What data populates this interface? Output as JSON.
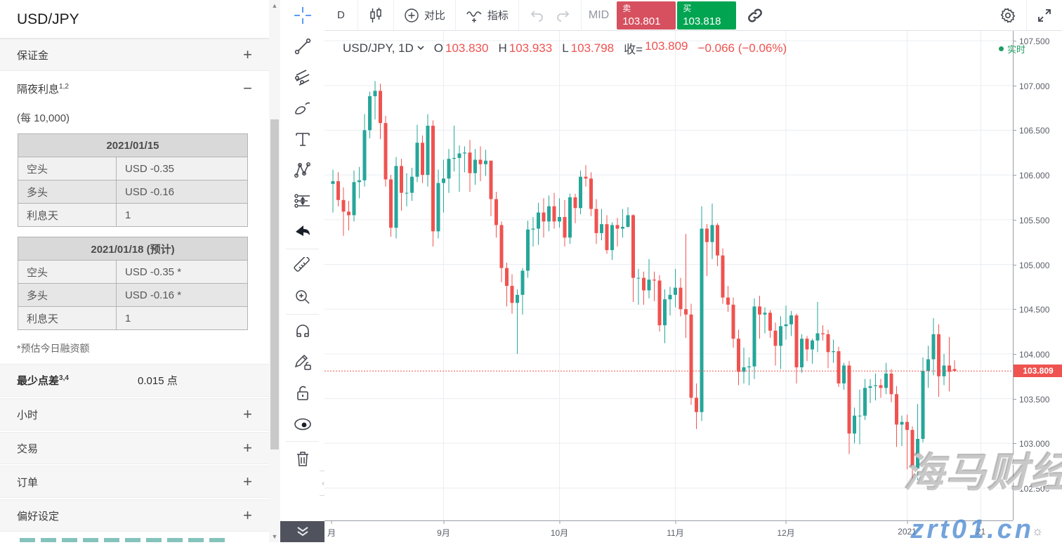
{
  "sidebar": {
    "title": "USD/JPY",
    "sections_top": [
      {
        "label": "保证金"
      }
    ],
    "overnight": {
      "label": "隔夜利息",
      "sup": "1,2",
      "subtitle": "(每 10,000)",
      "tables": [
        {
          "header": "2021/01/15",
          "rows": [
            [
              "空头",
              "USD -0.35"
            ],
            [
              "多头",
              "USD -0.16"
            ],
            [
              "利息天",
              "1"
            ]
          ]
        },
        {
          "header": "2021/01/18 (预计)",
          "rows": [
            [
              "空头",
              "USD -0.35 *"
            ],
            [
              "多头",
              "USD -0.16 *"
            ],
            [
              "利息天",
              "1"
            ]
          ]
        }
      ],
      "footnote": "*预估今日融资额"
    },
    "min_spread": {
      "label": "最少点差",
      "sup": "3,4",
      "value": "0.015 点"
    },
    "sections_bottom": [
      {
        "label": "小时"
      },
      {
        "label": "交易"
      },
      {
        "label": "订单"
      },
      {
        "label": "偏好设定"
      }
    ]
  },
  "top_toolbar": {
    "interval": "D",
    "compare_label": "对比",
    "indicators_label": "指标",
    "mid_label": "MID",
    "sell": {
      "label": "卖",
      "price": "103.801"
    },
    "buy": {
      "label": "买",
      "price": "103.818"
    }
  },
  "legend": {
    "symbol": "USD/JPY, 1D",
    "o_label": "O",
    "o": "103.830",
    "h_label": "H",
    "h": "103.933",
    "l_label": "L",
    "l": "103.798",
    "c_label": "收=",
    "c": "103.809",
    "change": "−0.066 (−0.06%)"
  },
  "realtime_label": "实时",
  "watermark": {
    "line1": "海马财经",
    "line2": "zrt01.cn"
  },
  "chart_data": {
    "type": "candlestick",
    "symbol": "USD/JPY",
    "interval": "1D",
    "title": "USD/JPY, 1D",
    "ohlc_current": {
      "open": 103.83,
      "high": 103.933,
      "low": 103.798,
      "close": 103.809,
      "change": -0.066,
      "change_pct": "-0.06%"
    },
    "current_price": 103.809,
    "ylim": [
      102.25,
      107.61
    ],
    "y_ticks": [
      107.5,
      107.0,
      106.5,
      106.0,
      105.5,
      105.0,
      104.5,
      104.0,
      103.5,
      103.0,
      102.5
    ],
    "x_ticks": [
      {
        "label": "月",
        "x": 10,
        "grid": false
      },
      {
        "label": "9月",
        "x": 169.5,
        "grid": true
      },
      {
        "label": "10月",
        "x": 334.5,
        "grid": true
      },
      {
        "label": "11月",
        "x": 499.5,
        "grid": true
      },
      {
        "label": "12月",
        "x": 657,
        "grid": true
      },
      {
        "label": "2021",
        "x": 829.5,
        "grid": true
      },
      {
        "label": "21",
        "x": 934.5,
        "grid": true
      }
    ],
    "colors": {
      "up": "#26a69a",
      "down": "#ef5350",
      "grid": "#eaedf0",
      "price_line": "#ef5350"
    },
    "candles": [
      [
        105.9,
        106.06,
        105.58,
        105.93
      ],
      [
        105.93,
        106.03,
        105.65,
        105.72
      ],
      [
        105.72,
        105.86,
        105.32,
        105.59
      ],
      [
        105.59,
        105.71,
        105.38,
        105.55
      ],
      [
        105.55,
        106.05,
        105.48,
        105.92
      ],
      [
        105.92,
        106.09,
        105.74,
        105.94
      ],
      [
        105.94,
        106.68,
        105.87,
        106.5
      ],
      [
        106.5,
        106.93,
        106.41,
        106.88
      ],
      [
        106.88,
        107.05,
        106.62,
        106.94
      ],
      [
        106.94,
        107.02,
        106.4,
        106.58
      ],
      [
        106.58,
        106.66,
        105.87,
        105.95
      ],
      [
        105.95,
        106.0,
        105.31,
        105.41
      ],
      [
        105.41,
        106.2,
        105.29,
        106.1
      ],
      [
        106.1,
        106.18,
        105.6,
        105.8
      ],
      [
        105.8,
        106.02,
        105.65,
        105.8
      ],
      [
        105.8,
        106.08,
        105.71,
        105.98
      ],
      [
        105.98,
        106.56,
        105.92,
        106.36
      ],
      [
        106.36,
        106.44,
        105.91,
        106.0
      ],
      [
        106.0,
        106.68,
        105.87,
        106.55
      ],
      [
        106.55,
        106.61,
        105.2,
        105.37
      ],
      [
        105.37,
        106.06,
        105.29,
        105.91
      ],
      [
        105.91,
        106.17,
        105.58,
        105.96
      ],
      [
        105.96,
        106.29,
        105.8,
        106.18
      ],
      [
        106.18,
        106.55,
        106.04,
        106.19
      ],
      [
        106.19,
        106.33,
        105.81,
        106.24
      ],
      [
        106.24,
        106.32,
        106.03,
        106.25
      ],
      [
        106.25,
        106.39,
        105.81,
        106.02
      ],
      [
        106.02,
        106.29,
        105.89,
        106.17
      ],
      [
        106.17,
        106.32,
        105.93,
        106.12
      ],
      [
        106.12,
        106.28,
        105.99,
        106.16
      ],
      [
        106.16,
        106.16,
        105.54,
        105.73
      ],
      [
        105.73,
        105.81,
        105.3,
        105.44
      ],
      [
        105.44,
        105.48,
        104.8,
        104.96
      ],
      [
        104.96,
        105.02,
        104.53,
        104.76
      ],
      [
        104.76,
        104.89,
        104.45,
        104.57
      ],
      [
        104.57,
        104.72,
        104.0,
        104.66
      ],
      [
        104.66,
        104.96,
        104.44,
        104.93
      ],
      [
        104.93,
        105.49,
        104.85,
        105.39
      ],
      [
        105.39,
        105.53,
        105.2,
        105.4
      ],
      [
        105.4,
        105.69,
        105.22,
        105.58
      ],
      [
        105.58,
        105.74,
        105.3,
        105.48
      ],
      [
        105.48,
        105.77,
        105.37,
        105.65
      ],
      [
        105.65,
        105.8,
        105.4,
        105.48
      ],
      [
        105.48,
        105.74,
        105.41,
        105.53
      ],
      [
        105.53,
        105.72,
        105.2,
        105.3
      ],
      [
        105.3,
        105.79,
        105.23,
        105.75
      ],
      [
        105.75,
        105.79,
        105.46,
        105.63
      ],
      [
        105.63,
        106.05,
        105.56,
        105.98
      ],
      [
        105.98,
        106.11,
        105.87,
        105.96
      ],
      [
        105.96,
        106.03,
        105.54,
        105.62
      ],
      [
        105.62,
        105.73,
        105.23,
        105.35
      ],
      [
        105.35,
        105.62,
        105.27,
        105.45
      ],
      [
        105.45,
        105.55,
        105.12,
        105.16
      ],
      [
        105.16,
        105.47,
        105.05,
        105.44
      ],
      [
        105.44,
        105.52,
        105.2,
        105.4
      ],
      [
        105.4,
        105.62,
        105.3,
        105.42
      ],
      [
        105.42,
        105.64,
        105.41,
        105.55
      ],
      [
        105.55,
        105.56,
        104.58,
        104.85
      ],
      [
        104.85,
        104.95,
        104.55,
        104.85
      ],
      [
        104.85,
        104.92,
        104.55,
        104.71
      ],
      [
        104.71,
        105.06,
        104.62,
        104.83
      ],
      [
        104.83,
        104.92,
        104.59,
        104.82
      ],
      [
        104.82,
        104.88,
        104.25,
        104.32
      ],
      [
        104.32,
        104.72,
        104.12,
        104.61
      ],
      [
        104.61,
        104.75,
        104.43,
        104.66
      ],
      [
        104.66,
        104.95,
        104.52,
        104.74
      ],
      [
        104.74,
        104.85,
        104.42,
        104.5
      ],
      [
        104.5,
        105.34,
        104.18,
        104.44
      ],
      [
        104.44,
        104.56,
        103.43,
        103.51
      ],
      [
        103.51,
        103.67,
        103.16,
        103.35
      ],
      [
        103.35,
        105.65,
        103.25,
        105.4
      ],
      [
        105.4,
        105.45,
        104.87,
        105.25
      ],
      [
        105.25,
        105.68,
        105.06,
        105.44
      ],
      [
        105.44,
        105.46,
        104.98,
        105.1
      ],
      [
        105.1,
        105.18,
        104.56,
        104.63
      ],
      [
        104.63,
        104.76,
        104.47,
        104.55
      ],
      [
        104.55,
        104.63,
        104.07,
        104.17
      ],
      [
        104.17,
        104.27,
        103.65,
        103.8
      ],
      [
        103.8,
        104.07,
        103.67,
        103.85
      ],
      [
        103.85,
        103.96,
        103.65,
        103.86
      ],
      [
        103.86,
        104.62,
        103.72,
        104.53
      ],
      [
        104.53,
        104.65,
        104.17,
        104.44
      ],
      [
        104.44,
        104.52,
        104.23,
        104.46
      ],
      [
        104.46,
        104.49,
        104.18,
        104.26
      ],
      [
        104.26,
        104.35,
        103.87,
        104.09
      ],
      [
        104.09,
        104.42,
        103.83,
        104.31
      ],
      [
        104.31,
        104.54,
        104.16,
        104.33
      ],
      [
        104.33,
        104.48,
        104.2,
        104.43
      ],
      [
        104.43,
        104.45,
        103.67,
        103.85
      ],
      [
        103.85,
        104.22,
        103.79,
        104.17
      ],
      [
        104.17,
        104.2,
        103.92,
        104.05
      ],
      [
        104.05,
        104.17,
        103.89,
        104.15
      ],
      [
        104.15,
        104.58,
        104.02,
        104.23
      ],
      [
        104.23,
        104.32,
        104.15,
        104.22
      ],
      [
        104.22,
        104.27,
        103.84,
        104.02
      ],
      [
        104.02,
        104.16,
        103.9,
        104.03
      ],
      [
        104.03,
        104.08,
        103.63,
        103.67
      ],
      [
        103.67,
        103.9,
        103.6,
        103.87
      ],
      [
        103.87,
        103.92,
        102.88,
        103.11
      ],
      [
        103.11,
        103.4,
        103.0,
        103.31
      ],
      [
        103.31,
        103.6,
        102.99,
        103.31
      ],
      [
        103.31,
        103.72,
        103.26,
        103.62
      ],
      [
        103.62,
        103.72,
        103.45,
        103.64
      ],
      [
        103.64,
        103.78,
        103.48,
        103.65
      ],
      [
        103.65,
        103.72,
        103.51,
        103.62
      ],
      [
        103.62,
        103.9,
        103.55,
        103.78
      ],
      [
        103.78,
        103.83,
        103.46,
        103.55
      ],
      [
        103.55,
        103.64,
        102.96,
        103.21
      ],
      [
        103.21,
        103.31,
        102.97,
        103.24
      ],
      [
        103.24,
        103.32,
        102.71,
        103.15
      ],
      [
        103.15,
        103.19,
        102.61,
        102.72
      ],
      [
        102.72,
        103.44,
        102.59,
        103.05
      ],
      [
        103.05,
        103.96,
        103.01,
        103.81
      ],
      [
        103.81,
        104.09,
        103.62,
        103.94
      ],
      [
        103.94,
        104.4,
        103.76,
        104.22
      ],
      [
        104.22,
        104.33,
        103.52,
        103.75
      ],
      [
        103.75,
        104.0,
        103.65,
        103.87
      ],
      [
        103.87,
        104.19,
        103.58,
        103.8
      ],
      [
        103.83,
        103.93,
        103.8,
        103.81
      ]
    ]
  }
}
